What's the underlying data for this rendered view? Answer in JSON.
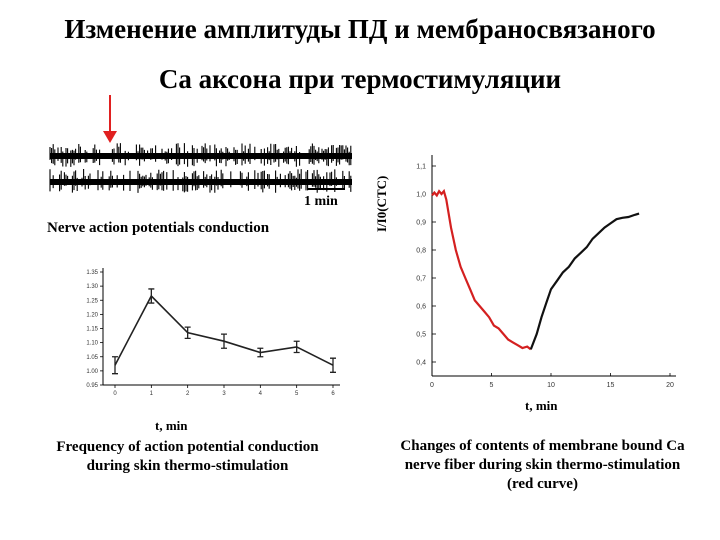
{
  "title_line1": "Изменение амплитуды ПД и мембраносвязаного",
  "title_line2": "Са аксона при термостимуляции",
  "nerve": {
    "scale_label": "1 min",
    "caption": "Nerve action potentials conduction"
  },
  "freq": {
    "xlabel": "t, min",
    "caption": "Frequency of action potential conduction during skin thermo-stimulation"
  },
  "ca": {
    "ylabel": "I/I0(CTC)",
    "xlabel": "t, min",
    "caption": "Changes of contents of membrane bound Ca nerve fiber during skin thermo-stimulation (red curve)"
  },
  "colors": {
    "arrow": "#e02020",
    "red_curve": "#d42020",
    "black_curve": "#111111"
  },
  "chart_data": [
    {
      "type": "line",
      "name": "frequency",
      "x": [
        0,
        1,
        2,
        3,
        4,
        5,
        6
      ],
      "y": [
        1.02,
        1.265,
        1.135,
        1.105,
        1.065,
        1.085,
        1.02
      ],
      "err": [
        0.03,
        0.025,
        0.02,
        0.025,
        0.015,
        0.02,
        0.025
      ],
      "xlim": [
        0,
        6
      ],
      "ylim": [
        0.95,
        1.35
      ],
      "xticks": [
        "0",
        "1",
        "2",
        "3",
        "4",
        "5",
        "6"
      ],
      "yticks": [
        "0.95",
        "1.00",
        "1.05",
        "1.10",
        "1.15",
        "1.20",
        "1.25",
        "1.30",
        "1.35"
      ],
      "xlabel": "t, min",
      "ylabel": ""
    },
    {
      "type": "line",
      "name": "ca_contents",
      "xlim": [
        0,
        20
      ],
      "ylim": [
        0.35,
        1.1
      ],
      "xticks": [
        "0",
        "5",
        "10",
        "15",
        "20"
      ],
      "yticks": [
        "0,4",
        "0,5",
        "0,6",
        "0,7",
        "0,8",
        "0,9",
        "1,0",
        "1,1"
      ],
      "xlabel": "t, min",
      "ylabel": "I/I0(CTC)",
      "series": [
        {
          "color": "red",
          "x": [
            0,
            0.2,
            0.4,
            0.6,
            0.8,
            1.0,
            1.2,
            1.6,
            2.0,
            2.4,
            2.8,
            3.2,
            3.6,
            4.0,
            4.4,
            4.8,
            5.2,
            5.6,
            6.0,
            6.4,
            6.8,
            7.2,
            7.6,
            8.0,
            8.3
          ],
          "y": [
            0.995,
            1.005,
            0.995,
            1.01,
            1.0,
            1.01,
            0.98,
            0.88,
            0.8,
            0.74,
            0.7,
            0.66,
            0.62,
            0.6,
            0.58,
            0.56,
            0.53,
            0.52,
            0.5,
            0.48,
            0.47,
            0.46,
            0.45,
            0.455,
            0.445
          ]
        },
        {
          "color": "black",
          "x": [
            8.3,
            8.8,
            9.2,
            9.6,
            10.0,
            10.5,
            11.0,
            11.5,
            12.0,
            12.5,
            13.0,
            13.5,
            14.0,
            14.5,
            15.0,
            15.5,
            16.0,
            16.5,
            17.0,
            17.4
          ],
          "y": [
            0.445,
            0.5,
            0.56,
            0.61,
            0.66,
            0.69,
            0.72,
            0.74,
            0.77,
            0.79,
            0.81,
            0.84,
            0.86,
            0.88,
            0.895,
            0.91,
            0.915,
            0.918,
            0.925,
            0.93
          ]
        }
      ]
    }
  ]
}
